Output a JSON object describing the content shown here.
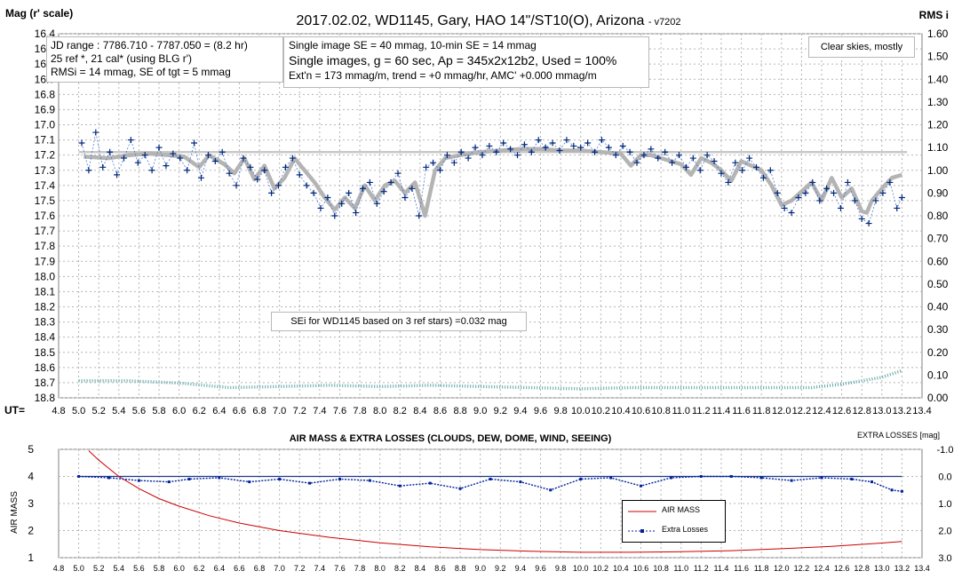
{
  "chart_data": [
    {
      "type": "scatter",
      "title": "2017.02.02,  WD1145, Gary, HAO  14\"/ST10(O), Arizona",
      "title_suffix": "- v7202",
      "ylabel_left": "Mag (r' scale)",
      "ylabel_right": "RMS i",
      "xlabel": "UT=",
      "xlim": [
        4.8,
        13.4
      ],
      "ylim_left_inverted": [
        16.4,
        18.8
      ],
      "ylim_right": [
        0.0,
        1.6
      ],
      "x_ticks": [
        "4.8",
        "5.0",
        "5.2",
        "5.4",
        "5.6",
        "5.8",
        "6.0",
        "6.2",
        "6.4",
        "6.6",
        "6.8",
        "7.0",
        "7.2",
        "7.4",
        "7.6",
        "7.8",
        "8.0",
        "8.2",
        "8.4",
        "8.6",
        "8.8",
        "9.0",
        "9.2",
        "9.4",
        "9.6",
        "9.8",
        "10.0",
        "10.2",
        "10.4",
        "10.6",
        "10.8",
        "11.0",
        "11.2",
        "11.4",
        "11.6",
        "11.8",
        "12.0",
        "12.2",
        "12.4",
        "12.6",
        "12.8",
        "13.0",
        "13.2",
        "13.4"
      ],
      "y_ticks_left": [
        "16.4",
        "16.5",
        "16.6",
        "16.7",
        "16.8",
        "16.9",
        "17.0",
        "17.1",
        "17.2",
        "17.3",
        "17.4",
        "17.5",
        "17.6",
        "17.7",
        "17.8",
        "17.9",
        "18.0",
        "18.1",
        "18.2",
        "18.3",
        "18.4",
        "18.5",
        "18.6",
        "18.7",
        "18.8"
      ],
      "y_ticks_right": [
        "1.60",
        "1.50",
        "1.40",
        "1.30",
        "1.20",
        "1.10",
        "1.00",
        "0.90",
        "0.80",
        "0.70",
        "0.60",
        "0.50",
        "0.40",
        "0.30",
        "0.20",
        "0.10",
        "0.00"
      ],
      "grid": true,
      "reference_level_mag": 17.18,
      "series": [
        {
          "kind": "smooth_mag",
          "x": [
            5.05,
            5.3,
            5.5,
            5.7,
            5.9,
            6.05,
            6.2,
            6.3,
            6.45,
            6.55,
            6.65,
            6.75,
            6.85,
            6.95,
            7.05,
            7.15,
            7.25,
            7.35,
            7.45,
            7.55,
            7.65,
            7.75,
            7.85,
            7.95,
            8.05,
            8.15,
            8.25,
            8.35,
            8.45,
            8.55,
            8.65,
            8.8,
            9.0,
            9.2,
            9.4,
            9.6,
            9.8,
            10.0,
            10.2,
            10.4,
            10.5,
            10.6,
            10.7,
            10.8,
            10.9,
            11.0,
            11.1,
            11.2,
            11.3,
            11.4,
            11.5,
            11.6,
            11.7,
            11.8,
            11.9,
            12.0,
            12.1,
            12.2,
            12.3,
            12.4,
            12.5,
            12.6,
            12.7,
            12.8,
            12.85,
            12.9,
            13.0,
            13.1,
            13.2
          ],
          "y": [
            17.21,
            17.22,
            17.2,
            17.19,
            17.2,
            17.21,
            17.28,
            17.2,
            17.26,
            17.32,
            17.22,
            17.36,
            17.27,
            17.42,
            17.35,
            17.22,
            17.3,
            17.38,
            17.48,
            17.56,
            17.48,
            17.55,
            17.4,
            17.5,
            17.4,
            17.37,
            17.45,
            17.38,
            17.6,
            17.3,
            17.22,
            17.2,
            17.18,
            17.17,
            17.16,
            17.16,
            17.17,
            17.17,
            17.18,
            17.19,
            17.27,
            17.2,
            17.2,
            17.22,
            17.24,
            17.26,
            17.33,
            17.22,
            17.25,
            17.3,
            17.37,
            17.24,
            17.27,
            17.3,
            17.4,
            17.53,
            17.5,
            17.44,
            17.38,
            17.5,
            17.35,
            17.48,
            17.42,
            17.57,
            17.58,
            17.5,
            17.42,
            17.35,
            17.33
          ]
        },
        {
          "kind": "single_images_mag",
          "x": [
            5.03,
            5.1,
            5.17,
            5.24,
            5.31,
            5.38,
            5.45,
            5.52,
            5.59,
            5.66,
            5.73,
            5.8,
            5.87,
            5.94,
            6.01,
            6.08,
            6.15,
            6.22,
            6.29,
            6.36,
            6.43,
            6.5,
            6.57,
            6.64,
            6.71,
            6.78,
            6.85,
            6.92,
            6.99,
            7.06,
            7.13,
            7.2,
            7.27,
            7.34,
            7.41,
            7.48,
            7.55,
            7.62,
            7.69,
            7.76,
            7.83,
            7.9,
            7.97,
            8.04,
            8.11,
            8.18,
            8.25,
            8.32,
            8.39,
            8.46,
            8.53,
            8.6,
            8.67,
            8.74,
            8.81,
            8.88,
            8.95,
            9.02,
            9.09,
            9.16,
            9.23,
            9.3,
            9.37,
            9.44,
            9.51,
            9.58,
            9.65,
            9.72,
            9.79,
            9.86,
            9.93,
            10.0,
            10.07,
            10.14,
            10.21,
            10.28,
            10.35,
            10.42,
            10.49,
            10.56,
            10.63,
            10.7,
            10.77,
            10.84,
            10.91,
            10.98,
            11.05,
            11.12,
            11.19,
            11.26,
            11.33,
            11.4,
            11.47,
            11.54,
            11.61,
            11.68,
            11.75,
            11.82,
            11.89,
            11.96,
            12.03,
            12.1,
            12.17,
            12.24,
            12.31,
            12.38,
            12.45,
            12.52,
            12.59,
            12.66,
            12.73,
            12.8,
            12.87,
            12.94,
            13.01,
            13.08,
            13.15,
            13.2
          ],
          "y": [
            17.12,
            17.3,
            17.05,
            17.28,
            17.18,
            17.33,
            17.22,
            17.1,
            17.25,
            17.2,
            17.3,
            17.15,
            17.27,
            17.19,
            17.22,
            17.3,
            17.12,
            17.35,
            17.2,
            17.24,
            17.18,
            17.32,
            17.4,
            17.22,
            17.28,
            17.36,
            17.3,
            17.45,
            17.4,
            17.28,
            17.22,
            17.33,
            17.4,
            17.45,
            17.55,
            17.48,
            17.6,
            17.52,
            17.45,
            17.58,
            17.42,
            17.38,
            17.52,
            17.44,
            17.38,
            17.32,
            17.48,
            17.42,
            17.6,
            17.28,
            17.25,
            17.3,
            17.2,
            17.25,
            17.18,
            17.22,
            17.15,
            17.2,
            17.14,
            17.18,
            17.12,
            17.16,
            17.2,
            17.13,
            17.18,
            17.1,
            17.15,
            17.12,
            17.17,
            17.1,
            17.14,
            17.15,
            17.12,
            17.18,
            17.1,
            17.15,
            17.2,
            17.14,
            17.18,
            17.25,
            17.2,
            17.16,
            17.22,
            17.18,
            17.25,
            17.2,
            17.28,
            17.22,
            17.3,
            17.2,
            17.24,
            17.32,
            17.38,
            17.25,
            17.3,
            17.22,
            17.28,
            17.35,
            17.3,
            17.45,
            17.55,
            17.58,
            17.48,
            17.45,
            17.38,
            17.5,
            17.42,
            17.45,
            17.55,
            17.38,
            17.5,
            17.62,
            17.65,
            17.5,
            17.45,
            17.38,
            17.55,
            17.48
          ]
        },
        {
          "kind": "rms_i_right_axis",
          "x": [
            5.0,
            5.5,
            6.0,
            6.5,
            7.0,
            7.5,
            8.0,
            8.5,
            9.0,
            9.5,
            10.0,
            10.5,
            11.0,
            11.5,
            12.0,
            12.3,
            12.6,
            12.8,
            13.0,
            13.2
          ],
          "y": [
            0.075,
            0.075,
            0.065,
            0.045,
            0.05,
            0.055,
            0.05,
            0.055,
            0.05,
            0.045,
            0.04,
            0.045,
            0.045,
            0.045,
            0.045,
            0.045,
            0.06,
            0.075,
            0.09,
            0.12
          ]
        }
      ],
      "annotations": [
        "JD range  : 7786.710 - 7787.050  = (8.2 hr)",
        "25 ref *, 21 cal* (using BLG r')",
        "RMSi = 14 mmag, SE of tgt = 5 mmag",
        "Single image SE = 40 mmag, 10-min SE = 14 mmag",
        "Single images, g = 60 sec, Ap = 345x2x12b2, Used = 100%",
        "Ext'n = 173 mmag/m, trend = +0 mmag/hr, AMC' +0.000 mmag/m",
        "Clear skies, mostly",
        "SEi for WD1145 based on 3 ref stars) =0.032 mag"
      ]
    },
    {
      "type": "line",
      "title": "AIR MASS & EXTRA LOSSES (CLOUDS, DEW, DOME, WIND, SEEING)",
      "ylabel_left": "AIR MASS",
      "ylabel_right": "EXTRA LOSSES [mag]",
      "xlim": [
        4.8,
        13.4
      ],
      "ylim_left": [
        1,
        5
      ],
      "ylim_right_inverted": [
        -1.0,
        3.0
      ],
      "x_ticks": [
        "4.8",
        "5.0",
        "5.2",
        "5.4",
        "5.6",
        "5.8",
        "6.0",
        "6.2",
        "6.4",
        "6.6",
        "6.8",
        "7.0",
        "7.2",
        "7.4",
        "7.6",
        "7.8",
        "8.0",
        "8.2",
        "8.4",
        "8.6",
        "8.8",
        "9.0",
        "9.2",
        "9.4",
        "9.6",
        "9.8",
        "10.0",
        "10.2",
        "10.4",
        "10.6",
        "10.8",
        "11.0",
        "11.2",
        "11.4",
        "11.6",
        "11.8",
        "12.0",
        "12.2",
        "12.4",
        "12.6",
        "12.8",
        "13.0",
        "13.2",
        "13.4"
      ],
      "y_ticks_left": [
        "1",
        "2",
        "3",
        "4",
        "5"
      ],
      "y_ticks_right": [
        "-1.0",
        "0.0",
        "1.0",
        "2.0",
        "3.0"
      ],
      "grid": true,
      "legend": "right",
      "series": [
        {
          "name": "AIR MASS",
          "x": [
            5.1,
            5.2,
            5.3,
            5.4,
            5.6,
            5.8,
            6.0,
            6.3,
            6.6,
            7.0,
            7.5,
            8.0,
            8.5,
            9.0,
            9.5,
            10.0,
            10.5,
            11.0,
            11.5,
            12.0,
            12.5,
            13.0,
            13.2
          ],
          "y": [
            4.95,
            4.6,
            4.3,
            4.0,
            3.55,
            3.18,
            2.9,
            2.55,
            2.28,
            2.0,
            1.75,
            1.55,
            1.4,
            1.3,
            1.24,
            1.2,
            1.2,
            1.22,
            1.26,
            1.33,
            1.42,
            1.54,
            1.6
          ]
        },
        {
          "name": "Extra Losses",
          "x": [
            5.0,
            5.3,
            5.6,
            5.9,
            6.1,
            6.4,
            6.7,
            7.0,
            7.3,
            7.6,
            7.9,
            8.2,
            8.5,
            8.8,
            9.1,
            9.4,
            9.7,
            10.0,
            10.3,
            10.6,
            10.9,
            11.2,
            11.5,
            11.8,
            12.1,
            12.4,
            12.7,
            12.9,
            13.1,
            13.2
          ],
          "y": [
            0.0,
            0.05,
            0.15,
            0.2,
            0.1,
            0.05,
            0.2,
            0.1,
            0.25,
            0.1,
            0.15,
            0.35,
            0.25,
            0.45,
            0.1,
            0.2,
            0.5,
            0.1,
            0.05,
            0.35,
            0.05,
            0.0,
            0.0,
            0.05,
            0.15,
            0.05,
            0.1,
            0.2,
            0.5,
            0.55
          ]
        }
      ]
    }
  ]
}
